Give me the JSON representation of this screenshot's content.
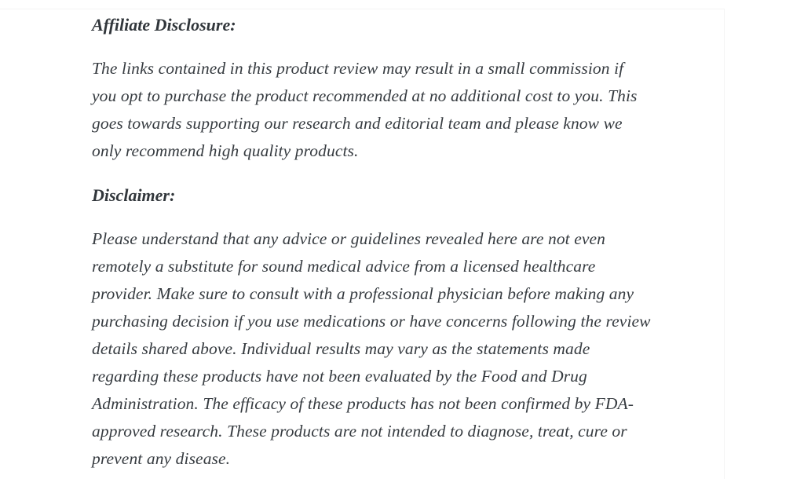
{
  "article": {
    "affiliate_heading": "Affiliate Disclosure:",
    "affiliate_paragraph": "The links contained in this product review may result in a small commission if\nyou opt to purchase the product recommended at no additional cost to you. This\ngoes towards supporting our research and editorial team and please know we\nonly recommend high quality products.",
    "disclaimer_heading": "Disclaimer:",
    "disclaimer_paragraph": "Please understand that any advice or guidelines revealed here are not even\nremotely a substitute for sound medical advice from a licensed healthcare\nprovider. Make sure to consult with a professional physician before making any\npurchasing decision if you use medications or have concerns following the review\ndetails shared above. Individual results may vary as the statements made\nregarding these products have not been evaluated by the Food and Drug\nAdministration. The efficacy of these products has not been confirmed by FDA-\napproved research. These products are not intended to diagnose, treat, cure or\nprevent any disease."
  },
  "colors": {
    "background": "#ffffff",
    "body_text": "#363b40",
    "heading_text": "#31363b",
    "card_edge": "#f4f4f4"
  }
}
